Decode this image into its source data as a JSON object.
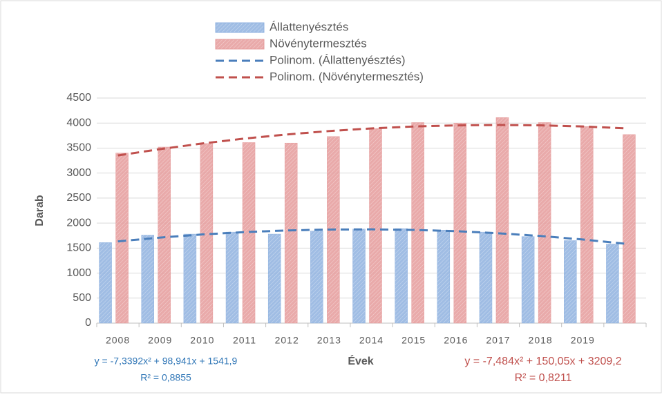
{
  "chart_data": {
    "type": "bar",
    "categories": [
      "2008",
      "2009",
      "2010",
      "2011",
      "2012",
      "2013",
      "2014",
      "2015",
      "2016",
      "2017",
      "2018",
      "2019",
      null
    ],
    "series": [
      {
        "name": "Állattenyésztés",
        "color": "#8fb2e0",
        "values": [
          1610,
          1760,
          1780,
          1820,
          1780,
          1840,
          1880,
          1890,
          1860,
          1820,
          1730,
          1650,
          1580
        ]
      },
      {
        "name": "Növénytermesztés",
        "color": "#e59b9b",
        "values": [
          3400,
          3520,
          3590,
          3610,
          3600,
          3730,
          3890,
          4010,
          4000,
          4110,
          4010,
          3930,
          3770
        ]
      },
      {
        "name": "Polinom. (Állattenyésztés)",
        "type": "line",
        "dashed": true,
        "color": "#4a7ebb",
        "values": [
          1634,
          1710,
          1773,
          1820,
          1853,
          1871,
          1875,
          1864,
          1838,
          1797,
          1742,
          1672,
          1588
        ]
      },
      {
        "name": "Polinom. (Növénytermesztés)",
        "type": "line",
        "dashed": true,
        "color": "#c0504d",
        "values": [
          3352,
          3479,
          3592,
          3690,
          3772,
          3840,
          3893,
          3931,
          3953,
          3961,
          3954,
          3932,
          3895
        ]
      }
    ],
    "xlabel": "Évek",
    "ylabel": "Darab",
    "ylim": [
      0,
      4500
    ],
    "yticks": [
      0,
      500,
      1000,
      1500,
      2000,
      2500,
      3000,
      3500,
      4000,
      4500
    ],
    "grid": true,
    "legend": "top",
    "annotations": [
      {
        "text": "y = -7,3392x² + 98,941x + 1541,9",
        "color": "#2e75b6"
      },
      {
        "text": "R² = 0,8855",
        "color": "#2e75b6"
      },
      {
        "text": "y = -7,484x² + 150,05x + 3209,2",
        "color": "#c0504d"
      },
      {
        "text": "R² = 0,8211",
        "color": "#c0504d"
      }
    ]
  }
}
